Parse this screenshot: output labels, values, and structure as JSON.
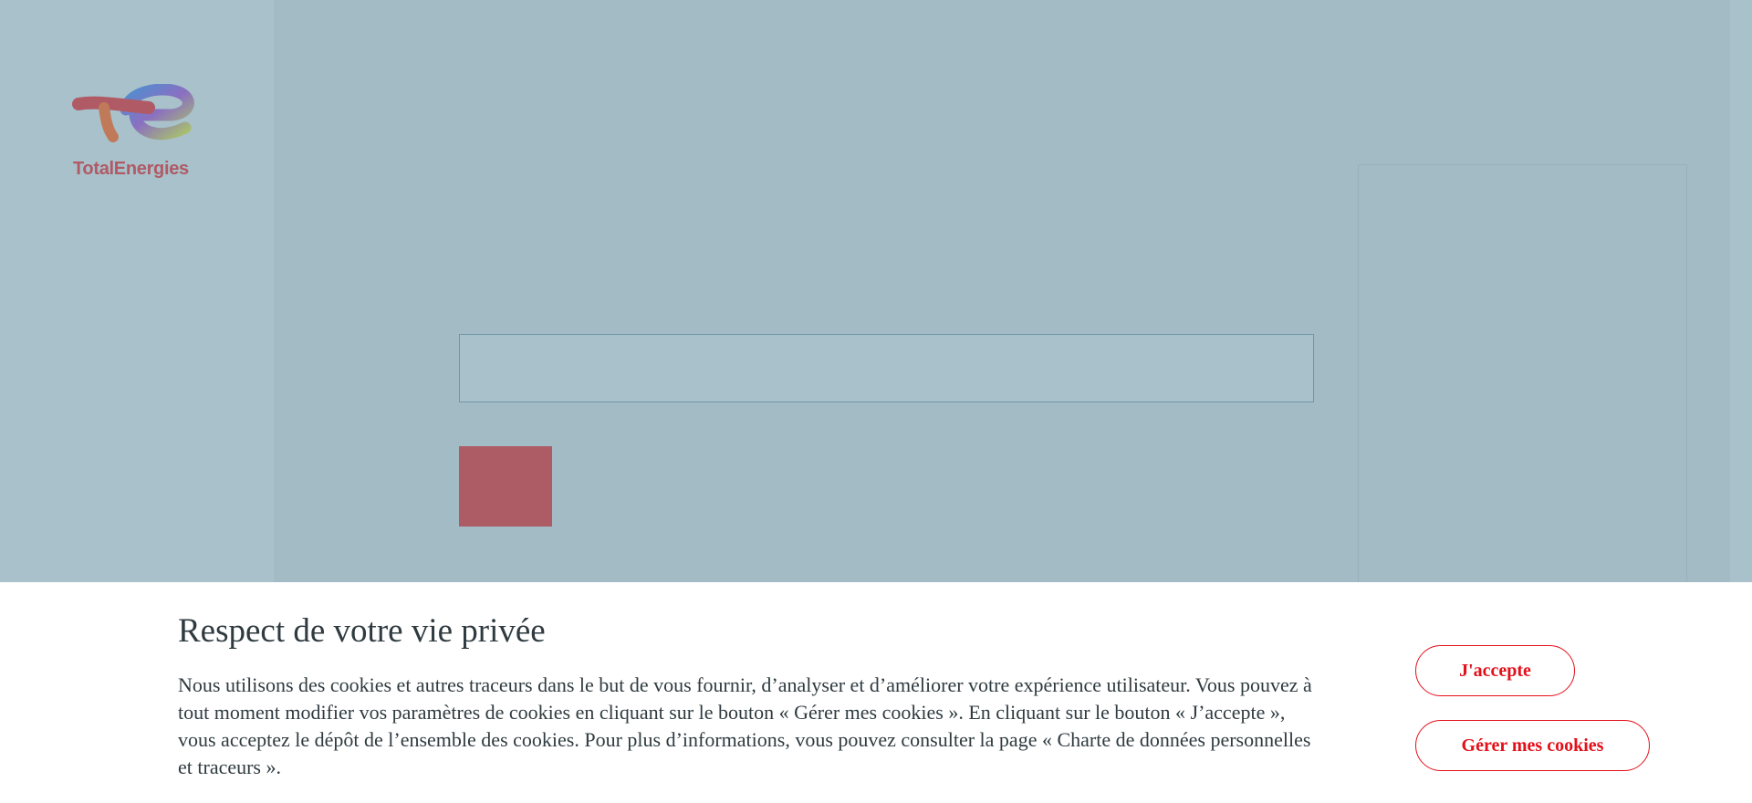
{
  "header": {
    "logo_text": "TotalEnergies"
  },
  "cookie_banner": {
    "title": "Respect de votre vie privée",
    "text": "Nous utilisons des cookies et autres traceurs dans le but de vous fournir, d’analyser et d’améliorer votre expérience utilisateur. Vous pouvez à tout moment modifier vos paramètres de cookies en cliquant sur le bouton « Gérer mes cookies ». En cliquant sur le bouton « J’accepte », vous acceptez le dépôt de l’ensemble des cookies. Pour plus d’informations, vous pouvez consulter la page « Charte de données personnelles et traceurs ».",
    "accept_button": "J'accepte",
    "manage_button": "Gérer mes cookies"
  }
}
